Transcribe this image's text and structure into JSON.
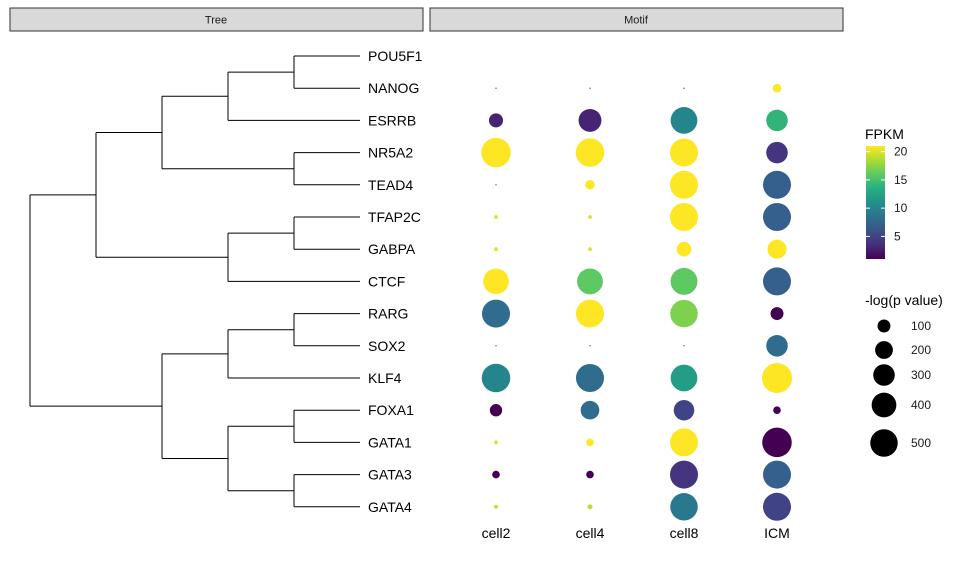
{
  "panels": {
    "tree_title": "Tree",
    "motif_title": "Motif"
  },
  "chart_data": {
    "type": "dotplot",
    "genes": [
      "POU5F1",
      "NANOG",
      "ESRRB",
      "NR5A2",
      "TEAD4",
      "TFAP2C",
      "GABPA",
      "CTCF",
      "RARG",
      "SOX2",
      "KLF4",
      "FOXA1",
      "GATA1",
      "GATA3",
      "GATA4"
    ],
    "samples": [
      "cell2",
      "cell4",
      "cell8",
      "ICM"
    ],
    "fpkm": [
      [
        null,
        null,
        null,
        null
      ],
      [
        1,
        1,
        1,
        21
      ],
      [
        3,
        3,
        10,
        14
      ],
      [
        21,
        21,
        21,
        4
      ],
      [
        1,
        21,
        21,
        7
      ],
      [
        20,
        20,
        21,
        7
      ],
      [
        20,
        20,
        21,
        21
      ],
      [
        21,
        16,
        16,
        7
      ],
      [
        8,
        21,
        17,
        1
      ],
      [
        1,
        1,
        1,
        8
      ],
      [
        10,
        8,
        12,
        21
      ],
      [
        1,
        8,
        5,
        1
      ],
      [
        20,
        21,
        21,
        1
      ],
      [
        1,
        1,
        4,
        7
      ],
      [
        19,
        19,
        9,
        5
      ]
    ],
    "neglogp": [
      [
        null,
        null,
        null,
        null
      ],
      [
        0,
        0,
        0,
        40
      ],
      [
        120,
        340,
        470,
        300
      ],
      [
        580,
        540,
        520,
        300
      ],
      [
        0,
        50,
        520,
        520
      ],
      [
        5,
        5,
        520,
        520
      ],
      [
        5,
        5,
        130,
        230
      ],
      [
        430,
        440,
        480,
        520
      ],
      [
        520,
        520,
        500,
        100
      ],
      [
        0,
        0,
        0,
        300
      ],
      [
        540,
        520,
        470,
        600
      ],
      [
        90,
        220,
        270,
        30
      ],
      [
        5,
        30,
        520,
        580
      ],
      [
        30,
        30,
        520,
        520
      ],
      [
        5,
        10,
        500,
        520
      ]
    ],
    "color_legend": {
      "title": "FPKM",
      "ticks": [
        5,
        10,
        15,
        20
      ],
      "min": 1,
      "max": 21,
      "colormap": "viridis"
    },
    "size_legend": {
      "title": "-log(p value)",
      "values": [
        100,
        200,
        300,
        400,
        500
      ]
    },
    "tree": {
      "children": [
        {
          "children": [
            {
              "children": [
                {
                  "children": [
                    {
                      "children": [
                        {
                          "tip": 0
                        },
                        {
                          "tip": 1
                        }
                      ]
                    },
                    {
                      "tip": 2
                    }
                  ]
                },
                {
                  "children": [
                    {
                      "tip": 3
                    },
                    {
                      "tip": 4
                    }
                  ]
                }
              ]
            },
            {
              "children": [
                {
                  "children": [
                    {
                      "tip": 5
                    },
                    {
                      "tip": 6
                    }
                  ]
                },
                {
                  "tip": 7
                }
              ]
            }
          ]
        },
        {
          "children": [
            {
              "children": [
                {
                  "children": [
                    {
                      "tip": 8
                    },
                    {
                      "tip": 9
                    }
                  ]
                },
                {
                  "tip": 10
                }
              ]
            },
            {
              "children": [
                {
                  "children": [
                    {
                      "tip": 11
                    },
                    {
                      "tip": 12
                    }
                  ]
                },
                {
                  "children": [
                    {
                      "tip": 13
                    },
                    {
                      "tip": 14
                    }
                  ]
                }
              ]
            }
          ]
        }
      ]
    }
  }
}
